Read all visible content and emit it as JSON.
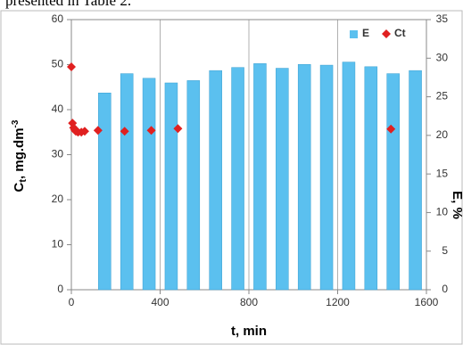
{
  "caption": "presented in Table 2.",
  "chart_data": {
    "type": "bar-scatter",
    "xlabel": "t, min",
    "ylabel": {
      "main": "C",
      "sub": "t",
      "rest": ", mg.dm",
      "sup": "-3"
    },
    "y2label": "E, %",
    "xlim": [
      0,
      1600
    ],
    "xticks": [
      0,
      400,
      800,
      1200,
      1600
    ],
    "ylim": [
      0,
      60
    ],
    "yticks": [
      0,
      10,
      20,
      30,
      40,
      50,
      60
    ],
    "y2lim": [
      0,
      35
    ],
    "y2ticks": [
      0,
      5,
      10,
      15,
      20,
      25,
      30,
      35
    ],
    "grid": "x",
    "legend": "top-right",
    "series": [
      {
        "name": "E",
        "type": "bar",
        "axis": "y2",
        "color": "#5bc0ef",
        "x": [
          150,
          250,
          350,
          450,
          550,
          650,
          750,
          850,
          950,
          1050,
          1150,
          1250,
          1350,
          1450,
          1550
        ],
        "values": [
          25.5,
          28,
          27.4,
          26.8,
          27.1,
          28.4,
          28.8,
          29.3,
          28.7,
          29.2,
          29.1,
          29.5,
          28.9,
          28,
          28.4
        ]
      },
      {
        "name": "Ct",
        "type": "scatter",
        "color": "#e02020",
        "x": [
          0,
          5,
          10,
          15,
          20,
          30,
          45,
          60,
          120,
          240,
          360,
          480,
          1440
        ],
        "values": [
          49.5,
          37,
          36,
          35.5,
          35.2,
          35,
          35,
          35.2,
          35.4,
          35.2,
          35.4,
          35.8,
          35.7
        ]
      }
    ]
  }
}
